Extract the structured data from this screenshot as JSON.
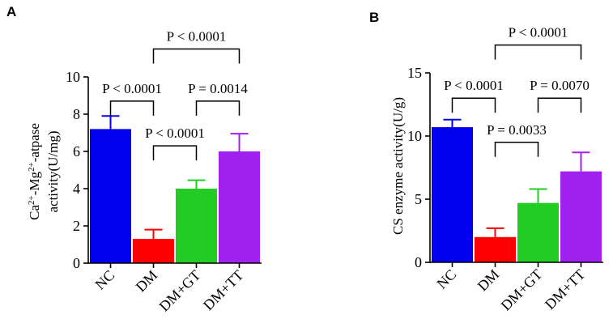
{
  "chart_data": [
    {
      "type": "bar",
      "panel_label": "A",
      "categories": [
        "NC",
        "DM",
        "DM+GT",
        "DM+TT"
      ],
      "values": [
        7.2,
        1.3,
        4.0,
        6.0
      ],
      "errors": [
        0.7,
        0.5,
        0.45,
        0.95
      ],
      "colors": [
        "#0000ee",
        "#ff0000",
        "#22cc22",
        "#a020f0"
      ],
      "error_colors": [
        "#0000ee",
        "#ff0000",
        "#22cc22",
        "#a020f0"
      ],
      "ylim": [
        0,
        10
      ],
      "yticks": [
        0,
        2,
        4,
        6,
        8,
        10
      ],
      "ylabel": "activity(U/mg)",
      "ylabel_line1": {
        "p1": "Ca",
        "s1": "2+",
        "p2": "-Mg",
        "s2": "2+",
        "p3": "-atpase"
      },
      "comparisons": [
        {
          "a": 0,
          "b": 1,
          "label": "P < 0.0001",
          "level": 8.7
        },
        {
          "a": 2,
          "b": 3,
          "label": "P = 0.0014",
          "level": 8.7
        },
        {
          "a": 1,
          "b": 2,
          "label": "P < 0.0001",
          "level": 6.3
        },
        {
          "a": 1,
          "b": 3,
          "label": "P < 0.0001",
          "level": 11.5
        }
      ]
    },
    {
      "type": "bar",
      "panel_label": "B",
      "categories": [
        "NC",
        "DM",
        "DM+GT",
        "DM+TT"
      ],
      "values": [
        10.7,
        2.0,
        4.7,
        7.2
      ],
      "errors": [
        0.6,
        0.7,
        1.1,
        1.5
      ],
      "colors": [
        "#0000ee",
        "#ff0000",
        "#22cc22",
        "#a020f0"
      ],
      "error_colors": [
        "#0000ee",
        "#ff0000",
        "#22cc22",
        "#a020f0"
      ],
      "ylim": [
        0,
        15
      ],
      "yticks": [
        0,
        5,
        10,
        15
      ],
      "ylabel": "CS enzyme activity(U/g)",
      "comparisons": [
        {
          "a": 0,
          "b": 1,
          "label": "P < 0.0001",
          "level": 13.0
        },
        {
          "a": 2,
          "b": 3,
          "label": "P = 0.0070",
          "level": 13.0
        },
        {
          "a": 1,
          "b": 2,
          "label": "P = 0.0033",
          "level": 9.5
        },
        {
          "a": 1,
          "b": 3,
          "label": "P < 0.0001",
          "level": 17.2
        }
      ]
    }
  ]
}
